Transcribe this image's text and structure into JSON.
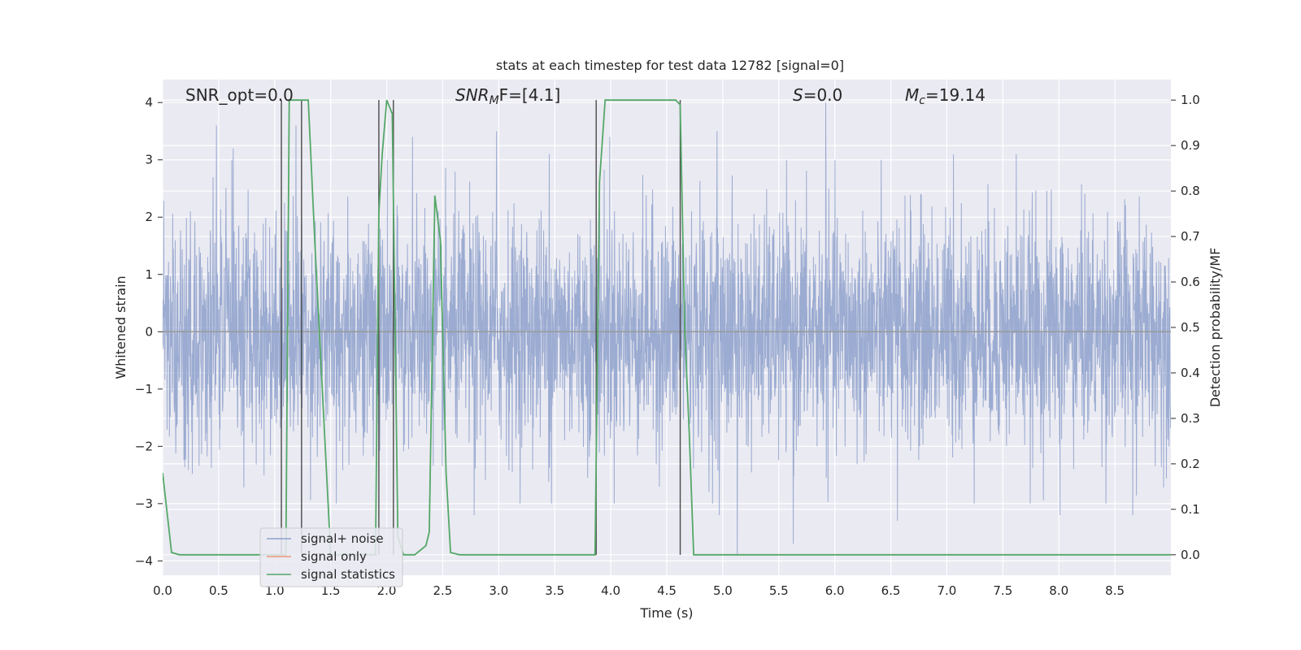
{
  "chart_data": {
    "type": "line",
    "title": "stats at each timestep for test data 12782 [signal=0]",
    "xlabel": "Time (s)",
    "ylabel": "Whitened strain",
    "ylabel_right": "Detection probability/MF",
    "xlim": [
      0,
      9.0
    ],
    "ylim": [
      -4.25,
      4.4
    ],
    "ylim_right": [
      -0.045,
      1.045
    ],
    "x_ticks": [
      0.0,
      0.5,
      1.0,
      1.5,
      2.0,
      2.5,
      3.0,
      3.5,
      4.0,
      4.5,
      5.0,
      5.5,
      6.0,
      6.5,
      7.0,
      7.5,
      8.0,
      8.5
    ],
    "x_tick_labels": [
      "0.0",
      "0.5",
      "1.0",
      "1.5",
      "2.0",
      "2.5",
      "3.0",
      "3.5",
      "4.0",
      "4.5",
      "5.0",
      "5.5",
      "6.0",
      "6.5",
      "7.0",
      "7.5",
      "8.0",
      "8.5"
    ],
    "y_ticks": [
      -4,
      -3,
      -2,
      -1,
      0,
      1,
      2,
      3,
      4
    ],
    "y_tick_labels": [
      "−4",
      "−3",
      "−2",
      "−1",
      "0",
      "1",
      "2",
      "3",
      "4"
    ],
    "y_right_ticks": [
      0.0,
      0.1,
      0.2,
      0.3,
      0.4,
      0.5,
      0.6,
      0.7,
      0.8,
      0.9,
      1.0
    ],
    "y_right_tick_labels": [
      "0.0",
      "0.1",
      "0.2",
      "0.3",
      "0.4",
      "0.5",
      "0.6",
      "0.7",
      "0.8",
      "0.9",
      "1.0"
    ],
    "grid": true,
    "legend": {
      "placement": "lower-left",
      "entries": [
        {
          "label": "signal+ noise",
          "color": "#8da0cb"
        },
        {
          "label": "signal only",
          "color": "#e9967a"
        },
        {
          "label": "signal statistics",
          "color": "#55a868"
        }
      ]
    },
    "annotations": {
      "snr_opt": "SNR_opt=0.0",
      "snr_mf_base": "SNR",
      "snr_mf_sub": "M",
      "snr_mf_rest": "F=[4.1]",
      "s_var": "S",
      "s_rest": "=0.0",
      "mc_var": "M",
      "mc_sub": "c",
      "mc_rest": "=19.14"
    },
    "colors": {
      "noise": "#8da0cb",
      "signal_only": "#e9967a",
      "statistics": "#55a868",
      "markers": "#4a4a4a",
      "plot_bg": "#eaeaf2",
      "grid": "#ffffff"
    },
    "noise_series": {
      "name": "signal+ noise",
      "sigma": 1.0,
      "peak_points": [
        [
          0.48,
          3.6
        ],
        [
          0.63,
          3.2
        ],
        [
          1.19,
          3.6
        ],
        [
          2.23,
          3.4
        ],
        [
          2.98,
          3.5
        ],
        [
          3.45,
          3.1
        ],
        [
          3.99,
          3.4
        ],
        [
          4.95,
          3.5
        ],
        [
          5.92,
          4.0
        ],
        [
          7.06,
          3.1
        ],
        [
          7.62,
          3.1
        ],
        [
          1.55,
          -3.0
        ],
        [
          2.78,
          -3.2
        ],
        [
          3.47,
          -3.0
        ],
        [
          4.97,
          -3.2
        ],
        [
          5.13,
          -3.9
        ],
        [
          5.63,
          -3.7
        ],
        [
          6.56,
          -3.3
        ],
        [
          8.01,
          -3.2
        ],
        [
          8.66,
          -3.2
        ]
      ]
    },
    "signal_only_series": {
      "name": "signal only",
      "x": [
        0.0,
        9.0
      ],
      "y": [
        0.0,
        0.0
      ]
    },
    "statistics_series": {
      "name": "signal statistics",
      "x": [
        0.0,
        0.08,
        0.15,
        0.25,
        0.5,
        0.8,
        0.9,
        1.0,
        1.05,
        1.1,
        1.13,
        1.2,
        1.25,
        1.3,
        1.36,
        1.5,
        1.7,
        1.9,
        1.93,
        1.96,
        2.0,
        2.05,
        2.1,
        2.15,
        2.25,
        2.35,
        2.38,
        2.43,
        2.48,
        2.53,
        2.57,
        2.65,
        2.75,
        3.0,
        3.2,
        3.5,
        3.7,
        3.8,
        3.86,
        3.9,
        3.95,
        4.2,
        4.5,
        4.58,
        4.62,
        4.66,
        4.7,
        4.74,
        4.9,
        5.5,
        6.0,
        7.0,
        8.0,
        9.0
      ],
      "y": [
        0.18,
        0.005,
        0.0,
        0.0,
        0.0,
        0.0,
        0.0,
        0.0,
        0.0,
        0.0,
        1.0,
        1.0,
        1.0,
        1.0,
        0.68,
        0.0,
        0.0,
        0.0,
        0.75,
        0.88,
        1.0,
        0.97,
        0.04,
        0.0,
        0.0,
        0.02,
        0.05,
        0.79,
        0.69,
        0.18,
        0.005,
        0.0,
        0.0,
        0.0,
        0.0,
        0.0,
        0.0,
        0.0,
        0.0,
        0.82,
        1.0,
        1.0,
        1.0,
        1.0,
        0.99,
        0.5,
        0.27,
        0.0,
        0.0,
        0.0,
        0.0,
        0.0,
        0.0,
        0.0
      ]
    },
    "marker_lines_x": [
      1.06,
      1.24,
      1.93,
      2.06,
      3.87,
      4.62
    ]
  }
}
